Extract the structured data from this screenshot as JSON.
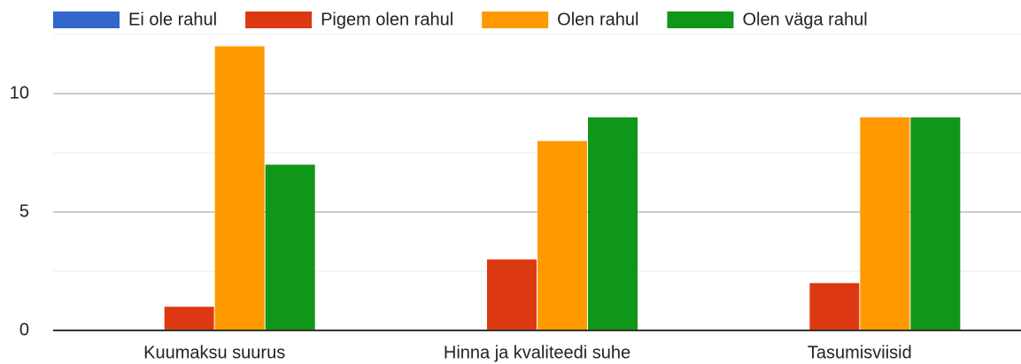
{
  "chart_data": {
    "type": "bar",
    "categories": [
      "Kuumaksu suurus",
      "Hinna ja kvaliteedi suhe",
      "Tasumisviisid"
    ],
    "series": [
      {
        "name": "Ei ole rahul",
        "color": "#3366cc",
        "values": [
          0,
          0,
          0
        ]
      },
      {
        "name": "Pigem olen rahul",
        "color": "#dc3912",
        "values": [
          1,
          3,
          2
        ]
      },
      {
        "name": "Olen rahul",
        "color": "#ff9900",
        "values": [
          12,
          8,
          9
        ]
      },
      {
        "name": "Olen väga rahul",
        "color": "#109618",
        "values": [
          7,
          9,
          9
        ]
      }
    ],
    "ylim": [
      0,
      12.5
    ],
    "yticks": [
      0,
      5,
      10
    ],
    "minor_yticks": [
      2.5,
      7.5,
      12.5
    ],
    "grid": true,
    "legend": "top"
  }
}
